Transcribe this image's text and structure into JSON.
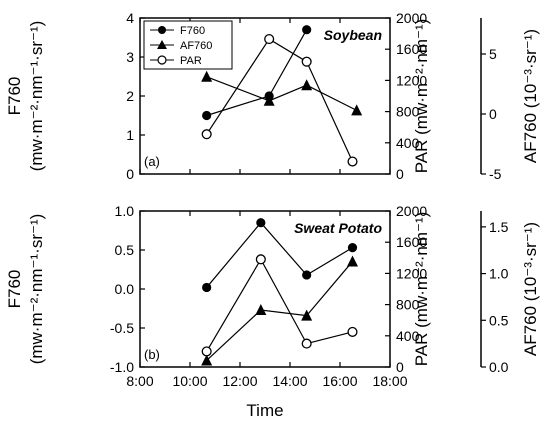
{
  "chart_data": [
    {
      "type": "line",
      "panel_label": "(a)",
      "crop": "Soybean",
      "left_axis": {
        "label_line1": "F760",
        "label_line2": "(mw·m⁻²·nm⁻¹·sr⁻¹)",
        "ylim": [
          0,
          4
        ],
        "ticks": [
          "0",
          "1",
          "2",
          "3",
          "4"
        ]
      },
      "right_axis_1": {
        "label": "PAR (mw·m⁻²·nm⁻¹)",
        "ylim": [
          0,
          2000
        ],
        "ticks": [
          "0",
          "400",
          "800",
          "1200",
          "1600",
          "2000"
        ]
      },
      "right_axis_2": {
        "label": "AF760 (10⁻³·sr⁻¹)",
        "ylim": [
          -5,
          8
        ],
        "ticks": [
          "-5",
          "0",
          "5"
        ]
      },
      "legend": [
        "F760",
        "AF760",
        "PAR"
      ],
      "series": [
        {
          "name": "F760",
          "marker": "circle-filled",
          "axis": "left",
          "x": [
            "10:40",
            "13:10",
            "14:40"
          ],
          "y": [
            1.5,
            2.0,
            3.7
          ]
        },
        {
          "name": "AF760",
          "marker": "triangle-filled",
          "axis": "right2",
          "x": [
            "10:40",
            "13:10",
            "14:40",
            "16:40"
          ],
          "y": [
            3.1,
            1.1,
            2.4,
            0.3
          ]
        },
        {
          "name": "PAR",
          "marker": "circle-open",
          "axis": "right1",
          "x": [
            "10:40",
            "13:10",
            "14:40",
            "16:30"
          ],
          "y": [
            510,
            1730,
            1440,
            160
          ]
        }
      ]
    },
    {
      "type": "line",
      "panel_label": "(b)",
      "crop": "Sweat Potato",
      "left_axis": {
        "label_line1": "F760",
        "label_line2": "(mw·m⁻²·nm⁻¹·sr⁻¹)",
        "ylim": [
          -1.0,
          1.0
        ],
        "ticks": [
          "-1.0",
          "-0.5",
          "0.0",
          "0.5",
          "1.0"
        ]
      },
      "right_axis_1": {
        "label": "PAR (mw·m⁻²·nm⁻¹)",
        "ylim": [
          0,
          2000
        ],
        "ticks": [
          "0",
          "400",
          "800",
          "1200",
          "1600",
          "2000"
        ]
      },
      "right_axis_2": {
        "label": "AF760 (10⁻³·sr⁻¹)",
        "ylim": [
          0,
          1.67
        ],
        "ticks": [
          "0.0",
          "0.5",
          "1.0",
          "1.5"
        ]
      },
      "series": [
        {
          "name": "F760",
          "marker": "circle-filled",
          "axis": "left",
          "x": [
            "10:40",
            "12:50",
            "14:40",
            "16:30"
          ],
          "y": [
            0.02,
            0.85,
            0.18,
            0.53
          ]
        },
        {
          "name": "AF760",
          "marker": "triangle-filled",
          "axis": "right2",
          "x": [
            "10:40",
            "12:50",
            "14:40",
            "16:30"
          ],
          "y": [
            0.07,
            0.61,
            0.55,
            1.13
          ]
        },
        {
          "name": "PAR",
          "marker": "circle-open",
          "axis": "right1",
          "x": [
            "10:40",
            "12:50",
            "14:40",
            "16:30"
          ],
          "y": [
            200,
            1380,
            300,
            450
          ]
        }
      ]
    }
  ],
  "x_axis": {
    "label": "Time",
    "ticks": [
      "8:00",
      "10:00",
      "12:00",
      "14:00",
      "16:00",
      "18:00"
    ],
    "range": [
      "8:00",
      "18:00"
    ]
  }
}
